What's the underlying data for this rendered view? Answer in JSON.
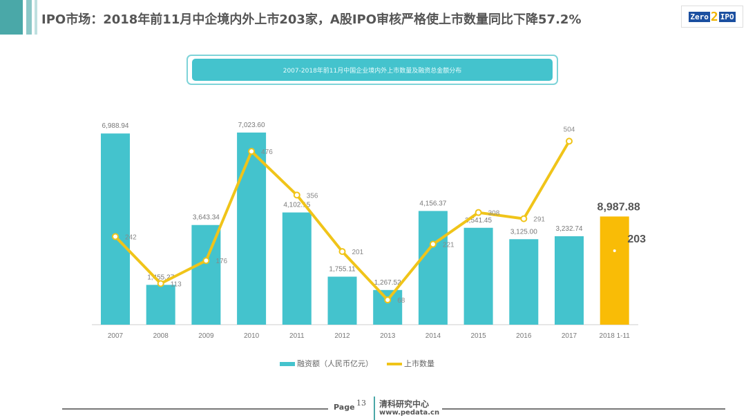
{
  "header": {
    "title": "IPO市场：2018年前11月中企境内外上市203家，A股IPO审核严格使上市数量同比下降57.2%",
    "logo_text": "Zero2IPO"
  },
  "chart_data": {
    "type": "bar+line",
    "title": "2007-2018年前11月中国企业境内外上市数量及融资总金额分布",
    "categories": [
      "2007",
      "2008",
      "2009",
      "2010",
      "2011",
      "2012",
      "2013",
      "2014",
      "2015",
      "2016",
      "2017",
      "2018 1-11"
    ],
    "series": [
      {
        "name": "融资额（人民币亿元）",
        "type": "bar",
        "color": "#44c3cd",
        "values": [
          6988.94,
          1455.27,
          3643.34,
          7023.6,
          4102.15,
          1755.11,
          1267.52,
          4156.37,
          3541.45,
          3125.0,
          3232.74,
          8987.88
        ],
        "labels": [
          "6,988.94",
          "1,455.27",
          "3,643.34",
          "7,023.60",
          "4,102.15",
          "1,755.11",
          "1,267.52",
          "4,156.37",
          "3,541.45",
          "3,125.00",
          "3,232.74",
          "8,987.88"
        ]
      },
      {
        "name": "上市数量",
        "type": "line",
        "color": "#f0c419",
        "values": [
          242,
          113,
          176,
          476,
          356,
          201,
          68,
          221,
          308,
          291,
          504,
          203
        ]
      }
    ],
    "highlight_color": "#f9bc06",
    "legend_position": "bottom"
  },
  "footer": {
    "page_label": "Page",
    "page_number": "13",
    "org": "清科研究中心",
    "url": "www.pedata.cn"
  }
}
